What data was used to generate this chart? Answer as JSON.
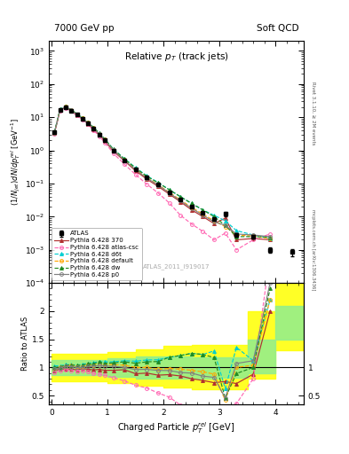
{
  "title_left": "7000 GeV pp",
  "title_right": "Soft QCD",
  "plot_title": "Relative $p_T$ (track jets)",
  "xlabel": "Charged Particle $p_T^{rel}$ [GeV]",
  "ylabel": "$(1/N_{jet})dN/dp_T^{rel}$ [GeV$^{-1}$]",
  "ylabel_right_top": "Rivet 3.1.10, ≥ 2M events",
  "ylabel_right_bottom": "mcplots.cern.ch [arXiv:1306.3436]",
  "watermark": "ATLAS_2011_I919017",
  "ylim_main": [
    0.0001,
    2000
  ],
  "xlim": [
    -0.05,
    4.5
  ],
  "ylim_ratio": [
    0.35,
    2.5
  ],
  "atlas_x": [
    0.05,
    0.15,
    0.25,
    0.35,
    0.45,
    0.55,
    0.65,
    0.75,
    0.85,
    0.95,
    1.1,
    1.3,
    1.5,
    1.7,
    1.9,
    2.1,
    2.3,
    2.5,
    2.7,
    2.9,
    3.1,
    3.3,
    3.6,
    3.9,
    4.3
  ],
  "atlas_y": [
    3.5,
    17.0,
    20.0,
    16.0,
    12.0,
    9.0,
    6.5,
    4.5,
    3.0,
    2.0,
    1.0,
    0.5,
    0.27,
    0.15,
    0.095,
    0.055,
    0.033,
    0.02,
    0.013,
    0.0085,
    0.012,
    0.0028,
    0.0025,
    0.001,
    0.00085
  ],
  "atlas_yerr": [
    0.25,
    0.5,
    0.5,
    0.4,
    0.3,
    0.25,
    0.18,
    0.13,
    0.09,
    0.06,
    0.03,
    0.015,
    0.008,
    0.005,
    0.003,
    0.002,
    0.0012,
    0.0007,
    0.0005,
    0.0003,
    0.002,
    0.0003,
    0.0003,
    0.0002,
    0.0002
  ],
  "py370_x": [
    0.05,
    0.15,
    0.25,
    0.35,
    0.45,
    0.55,
    0.65,
    0.75,
    0.85,
    0.95,
    1.1,
    1.3,
    1.5,
    1.7,
    1.9,
    2.1,
    2.3,
    2.5,
    2.7,
    2.9,
    3.1,
    3.3,
    3.6,
    3.9
  ],
  "py370_y": [
    3.3,
    16.5,
    19.5,
    15.5,
    11.5,
    8.8,
    6.3,
    4.3,
    2.9,
    1.9,
    0.95,
    0.48,
    0.24,
    0.135,
    0.082,
    0.048,
    0.028,
    0.016,
    0.01,
    0.0062,
    0.009,
    0.002,
    0.0022,
    0.002
  ],
  "py370_color": "#b03030",
  "py370_ls": "-",
  "py370_marker": "^",
  "py370_label": "Pythia 6.428 370",
  "pyatlas_x": [
    0.05,
    0.15,
    0.25,
    0.35,
    0.45,
    0.55,
    0.65,
    0.75,
    0.85,
    0.95,
    1.1,
    1.3,
    1.5,
    1.7,
    1.9,
    2.1,
    2.3,
    2.5,
    2.7,
    2.9,
    3.1,
    3.3,
    3.6,
    3.9
  ],
  "pyatlas_y": [
    3.2,
    16.0,
    19.2,
    15.2,
    11.2,
    8.5,
    6.0,
    4.0,
    2.65,
    1.72,
    0.82,
    0.38,
    0.185,
    0.095,
    0.052,
    0.026,
    0.011,
    0.006,
    0.0036,
    0.002,
    0.0032,
    0.001,
    0.002,
    0.003
  ],
  "pyatlas_color": "#ff69b4",
  "pyatlas_ls": "--",
  "pyatlas_marker": "o",
  "pyatlas_label": "Pythia 6.428 atlas-csc",
  "pyd6t_x": [
    0.05,
    0.15,
    0.25,
    0.35,
    0.45,
    0.55,
    0.65,
    0.75,
    0.85,
    0.95,
    1.1,
    1.3,
    1.5,
    1.7,
    1.9,
    2.1,
    2.3,
    2.5,
    2.7,
    2.9,
    3.1,
    3.3,
    3.6,
    3.9
  ],
  "pyd6t_y": [
    3.6,
    17.5,
    21.0,
    16.8,
    12.5,
    9.5,
    7.0,
    4.9,
    3.3,
    2.2,
    1.1,
    0.56,
    0.3,
    0.17,
    0.108,
    0.065,
    0.04,
    0.025,
    0.016,
    0.011,
    0.0075,
    0.0038,
    0.0028,
    0.0022
  ],
  "pyd6t_color": "#00ced1",
  "pyd6t_ls": "--",
  "pyd6t_marker": "^",
  "pyd6t_label": "Pythia 6.428 d6t",
  "pydef_x": [
    0.05,
    0.15,
    0.25,
    0.35,
    0.45,
    0.55,
    0.65,
    0.75,
    0.85,
    0.95,
    1.1,
    1.3,
    1.5,
    1.7,
    1.9,
    2.1,
    2.3,
    2.5,
    2.7,
    2.9,
    3.1,
    3.3,
    3.6,
    3.9
  ],
  "pydef_y": [
    3.4,
    17.0,
    20.5,
    16.5,
    12.2,
    9.2,
    6.8,
    4.7,
    3.2,
    2.1,
    1.05,
    0.52,
    0.27,
    0.15,
    0.092,
    0.054,
    0.032,
    0.019,
    0.012,
    0.0075,
    0.005,
    0.0028,
    0.0026,
    0.0022
  ],
  "pydef_color": "#ffa500",
  "pydef_ls": "--",
  "pydef_marker": "o",
  "pydef_label": "Pythia 6.428 default",
  "pydw_x": [
    0.05,
    0.15,
    0.25,
    0.35,
    0.45,
    0.55,
    0.65,
    0.75,
    0.85,
    0.95,
    1.1,
    1.3,
    1.5,
    1.7,
    1.9,
    2.1,
    2.3,
    2.5,
    2.7,
    2.9,
    3.1,
    3.3,
    3.6,
    3.9
  ],
  "pydw_y": [
    3.5,
    17.2,
    20.8,
    16.7,
    12.4,
    9.4,
    6.9,
    4.8,
    3.3,
    2.15,
    1.08,
    0.55,
    0.29,
    0.165,
    0.105,
    0.065,
    0.04,
    0.025,
    0.016,
    0.01,
    0.0055,
    0.0025,
    0.0025,
    0.0024
  ],
  "pydw_color": "#228b22",
  "pydw_ls": "--",
  "pydw_marker": "^",
  "pydw_label": "Pythia 6.428 dw",
  "pyp0_x": [
    0.05,
    0.15,
    0.25,
    0.35,
    0.45,
    0.55,
    0.65,
    0.75,
    0.85,
    0.95,
    1.1,
    1.3,
    1.5,
    1.7,
    1.9,
    2.1,
    2.3,
    2.5,
    2.7,
    2.9,
    3.1,
    3.3,
    3.6,
    3.9
  ],
  "pyp0_y": [
    3.4,
    16.8,
    20.3,
    16.2,
    12.0,
    9.0,
    6.6,
    4.6,
    3.1,
    2.05,
    1.02,
    0.5,
    0.26,
    0.145,
    0.09,
    0.052,
    0.03,
    0.018,
    0.011,
    0.007,
    0.0055,
    0.003,
    0.0028,
    0.0025
  ],
  "pyp0_color": "#808080",
  "pyp0_ls": "-",
  "pyp0_marker": "o",
  "pyp0_label": "Pythia 6.428 p0",
  "band_x": [
    0.0,
    0.5,
    1.0,
    1.5,
    2.0,
    2.5,
    3.0,
    3.5,
    4.0,
    4.5
  ],
  "band_g_lo": [
    0.87,
    0.87,
    0.84,
    0.8,
    0.8,
    0.8,
    0.82,
    0.9,
    1.5,
    1.5
  ],
  "band_g_hi": [
    1.13,
    1.13,
    1.16,
    1.2,
    1.2,
    1.18,
    1.18,
    1.5,
    2.1,
    2.1
  ],
  "band_y_lo": [
    0.75,
    0.75,
    0.72,
    0.68,
    0.65,
    0.62,
    0.62,
    0.8,
    1.3,
    1.3
  ],
  "band_y_hi": [
    1.25,
    1.25,
    1.28,
    1.32,
    1.38,
    1.4,
    1.4,
    2.0,
    2.5,
    2.5
  ]
}
